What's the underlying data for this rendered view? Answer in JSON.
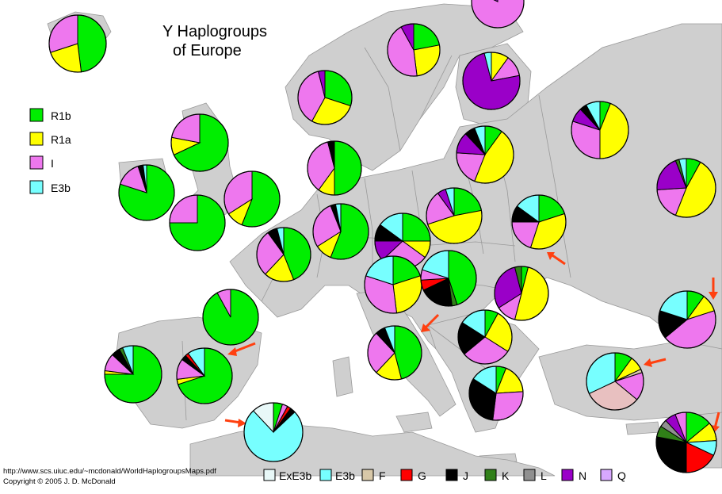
{
  "title": {
    "line1": "Y Haplogroups",
    "line2": "of Europe"
  },
  "colors": {
    "sea": "#ffffff",
    "land": "#cfcfcf",
    "border": "#9a9a9a",
    "arrow": "#ff4010",
    "R1b": "#00ee00",
    "R1a": "#ffff00",
    "I": "#ee77ee",
    "E3b": "#77ffff",
    "ExE3b": "#e8f8f8",
    "F": "#d8c8a8",
    "G": "#ff0000",
    "J": "#000000",
    "K": "#308018",
    "L": "#909090",
    "N": "#9a00c8",
    "Q": "#d8a8ff",
    "Other": "#e8c0c0"
  },
  "legend_left": [
    {
      "key": "R1b",
      "label": "R1b"
    },
    {
      "key": "R1a",
      "label": "R1a"
    },
    {
      "key": "I",
      "label": "I"
    },
    {
      "key": "E3b",
      "label": "E3b"
    }
  ],
  "legend_bottom": [
    {
      "key": "ExE3b",
      "label": "ExE3b"
    },
    {
      "key": "E3b",
      "label": "E3b"
    },
    {
      "key": "F",
      "label": "F"
    },
    {
      "key": "G",
      "label": "G"
    },
    {
      "key": "J",
      "label": "J"
    },
    {
      "key": "K",
      "label": "K"
    },
    {
      "key": "L",
      "label": "L"
    },
    {
      "key": "N",
      "label": "N"
    },
    {
      "key": "Q",
      "label": "Q"
    }
  ],
  "credits": {
    "url": "http://www.scs.uiuc.edu/~mcdonald/WorldHaplogroupsMaps.pdf",
    "copyright": "Copyright © 2005  J. D. McDonald"
  },
  "chart_data": {
    "type": "pie",
    "title": "Y Haplogroups of Europe",
    "legend": [
      "R1b",
      "R1a",
      "I",
      "E3b",
      "ExE3b",
      "F",
      "G",
      "J",
      "K",
      "L",
      "N",
      "Q"
    ],
    "pies": [
      {
        "slices": [
          [
            "R1b",
            48
          ],
          [
            "R1a",
            22
          ],
          [
            "I",
            30
          ]
        ]
      },
      {
        "slices": [
          [
            "R1b",
            22
          ],
          [
            "R1a",
            26
          ],
          [
            "I",
            44
          ],
          [
            "N",
            8
          ]
        ]
      },
      {
        "slices": [
          [
            "R1b",
            30
          ],
          [
            "R1a",
            28
          ],
          [
            "I",
            38
          ],
          [
            "N",
            4
          ]
        ]
      },
      {
        "slices": [
          [
            "I",
            82
          ],
          [
            "N",
            18
          ]
        ]
      },
      {
        "slices": [
          [
            "R1a",
            10
          ],
          [
            "I",
            12
          ],
          [
            "N",
            74
          ],
          [
            "E3b",
            4
          ]
        ]
      },
      {
        "slices": [
          [
            "R1b",
            68
          ],
          [
            "R1a",
            10
          ],
          [
            "I",
            22
          ]
        ]
      },
      {
        "slices": [
          [
            "R1b",
            50
          ],
          [
            "R1a",
            10
          ],
          [
            "I",
            36
          ],
          [
            "J",
            4
          ]
        ]
      },
      {
        "slices": [
          [
            "R1b",
            80
          ],
          [
            "I",
            15
          ],
          [
            "J",
            3
          ],
          [
            "E3b",
            2
          ]
        ]
      },
      {
        "slices": [
          [
            "R1b",
            56
          ],
          [
            "R1a",
            10
          ],
          [
            "I",
            34
          ]
        ]
      },
      {
        "slices": [
          [
            "R1b",
            75
          ],
          [
            "I",
            25
          ]
        ]
      },
      {
        "slices": [
          [
            "R1b",
            56
          ],
          [
            "R1a",
            10
          ],
          [
            "I",
            28
          ],
          [
            "J",
            3
          ],
          [
            "E3b",
            3
          ]
        ]
      },
      {
        "slices": [
          [
            "R1b",
            44
          ],
          [
            "R1a",
            18
          ],
          [
            "I",
            28
          ],
          [
            "J",
            6
          ],
          [
            "E3b",
            4
          ]
        ]
      },
      {
        "slices": [
          [
            "R1b",
            92
          ],
          [
            "I",
            8
          ]
        ]
      },
      {
        "slices": [
          [
            "R1b",
            75
          ],
          [
            "R1a",
            2
          ],
          [
            "I",
            10
          ],
          [
            "J",
            5
          ],
          [
            "K",
            2
          ],
          [
            "E3b",
            6
          ]
        ]
      },
      {
        "slices": [
          [
            "R1b",
            70
          ],
          [
            "R1a",
            3
          ],
          [
            "I",
            12
          ],
          [
            "J",
            3
          ],
          [
            "G",
            2
          ],
          [
            "E3b",
            10
          ]
        ]
      },
      {
        "slices": [
          [
            "R1b",
            5
          ],
          [
            "I",
            3
          ],
          [
            "G",
            2
          ],
          [
            "J",
            3
          ],
          [
            "E3b",
            75
          ],
          [
            "ExE3b",
            12
          ]
        ]
      },
      {
        "slices": [
          [
            "R1b",
            46
          ],
          [
            "R1a",
            16
          ],
          [
            "I",
            26
          ],
          [
            "J",
            6
          ],
          [
            "E3b",
            6
          ]
        ]
      },
      {
        "slices": [
          [
            "R1b",
            25
          ],
          [
            "R1a",
            10
          ],
          [
            "I",
            28
          ],
          [
            "N",
            12
          ],
          [
            "J",
            10
          ],
          [
            "E3b",
            15
          ]
        ]
      },
      {
        "slices": [
          [
            "R1b",
            22
          ],
          [
            "R1a",
            48
          ],
          [
            "I",
            20
          ],
          [
            "N",
            5
          ],
          [
            "E3b",
            5
          ]
        ]
      },
      {
        "slices": [
          [
            "R1b",
            20
          ],
          [
            "R1a",
            35
          ],
          [
            "I",
            20
          ],
          [
            "J",
            10
          ],
          [
            "E3b",
            15
          ]
        ]
      },
      {
        "slices": [
          [
            "R1b",
            20
          ],
          [
            "R1a",
            28
          ],
          [
            "I",
            32
          ],
          [
            "E3b",
            20
          ]
        ]
      },
      {
        "slices": [
          [
            "R1b",
            45
          ],
          [
            "K",
            3
          ],
          [
            "J",
            20
          ],
          [
            "G",
            6
          ],
          [
            "I",
            6
          ],
          [
            "E3b",
            20
          ]
        ]
      },
      {
        "slices": [
          [
            "R1b",
            8
          ],
          [
            "R1a",
            26
          ],
          [
            "I",
            30
          ],
          [
            "J",
            20
          ],
          [
            "E3b",
            16
          ]
        ]
      },
      {
        "slices": [
          [
            "R1b",
            6
          ],
          [
            "R1a",
            44
          ],
          [
            "I",
            30
          ],
          [
            "N",
            8
          ],
          [
            "J",
            4
          ],
          [
            "E3b",
            8
          ]
        ]
      },
      {
        "slices": [
          [
            "R1b",
            10
          ],
          [
            "R1a",
            46
          ],
          [
            "I",
            20
          ],
          [
            "N",
            12
          ],
          [
            "J",
            6
          ],
          [
            "E3b",
            6
          ]
        ]
      },
      {
        "slices": [
          [
            "R1b",
            8
          ],
          [
            "R1a",
            48
          ],
          [
            "I",
            18
          ],
          [
            "N",
            20
          ],
          [
            "K",
            2
          ],
          [
            "E3b",
            4
          ]
        ]
      },
      {
        "slices": [
          [
            "R1b",
            4
          ],
          [
            "R1a",
            50
          ],
          [
            "I",
            12
          ],
          [
            "N",
            30
          ],
          [
            "K",
            4
          ]
        ]
      },
      {
        "slices": [
          [
            "R1b",
            6
          ],
          [
            "R1a",
            18
          ],
          [
            "I",
            28
          ],
          [
            "J",
            32
          ],
          [
            "E3b",
            16
          ]
        ]
      },
      {
        "slices": [
          [
            "R1b",
            10
          ],
          [
            "R1a",
            10
          ],
          [
            "I",
            44
          ],
          [
            "J",
            16
          ],
          [
            "E3b",
            20
          ]
        ]
      },
      {
        "slices": [
          [
            "R1b",
            10
          ],
          [
            "R1a",
            8
          ],
          [
            "F",
            2
          ],
          [
            "I",
            16
          ],
          [
            "Other",
            32
          ],
          [
            "E3b",
            32
          ]
        ]
      },
      {
        "slices": [
          [
            "R1b",
            14
          ],
          [
            "R1a",
            10
          ],
          [
            "E3b",
            8
          ],
          [
            "G",
            18
          ],
          [
            "J",
            28
          ],
          [
            "K",
            6
          ],
          [
            "L",
            4
          ],
          [
            "N",
            6
          ],
          [
            "I",
            6
          ]
        ]
      },
      {
        "slices": [
          [
            "R1b",
            10
          ],
          [
            "R1a",
            8
          ],
          [
            "E3b",
            10
          ],
          [
            "G",
            16
          ],
          [
            "I",
            18
          ],
          [
            "J",
            32
          ],
          [
            "N",
            6
          ]
        ]
      },
      {
        "slices": [
          [
            "R1b",
            4
          ],
          [
            "E3b",
            20
          ],
          [
            "I",
            14
          ],
          [
            "G",
            4
          ],
          [
            "J",
            46
          ],
          [
            "L",
            6
          ],
          [
            "Q",
            6
          ]
        ]
      }
    ]
  }
}
